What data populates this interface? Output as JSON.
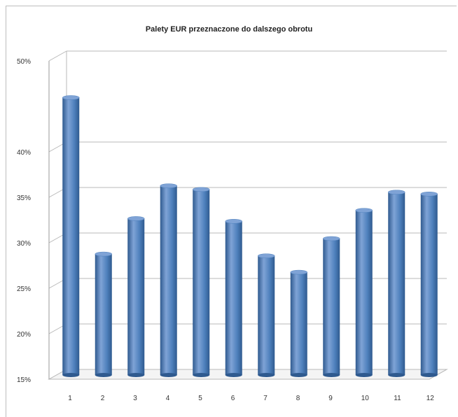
{
  "chart_data": {
    "type": "bar",
    "title": "Palety EUR przeznaczone do dalszego obrotu",
    "categories": [
      "1",
      "2",
      "3",
      "4",
      "5",
      "6",
      "7",
      "8",
      "9",
      "10",
      "11",
      "12"
    ],
    "values": [
      45.5,
      28.3,
      32.2,
      35.8,
      35.4,
      31.9,
      28.1,
      26.3,
      30,
      33.1,
      35.1,
      34.9
    ],
    "ylim": [
      15,
      50
    ],
    "yticks": [
      "15%",
      "20%",
      "25%",
      "30%",
      "35%",
      "40%",
      "50%"
    ],
    "ytick_values": [
      15,
      20,
      25,
      30,
      35,
      40,
      50
    ],
    "grid": true,
    "bar_color": "#4f81bd",
    "bar_dark": "#2f5a8f",
    "bar_light": "#7fa3d6"
  }
}
